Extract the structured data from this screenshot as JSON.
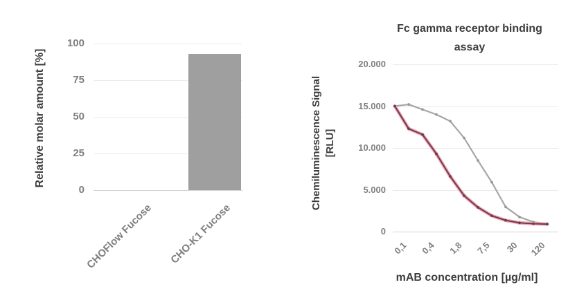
{
  "page": {
    "background": "#ffffff"
  },
  "colors": {
    "bar_gray": "#9f9f9f",
    "line_gray": "#a6a6a6",
    "line_red_core": "#6e3b46",
    "line_red_halo": "#f2a6ba",
    "grid": "#ebebeb",
    "axis_zero_line": "#d2d2d2",
    "tick_text": "#7f7f7f",
    "title_text": "#3d3d3d"
  },
  "chart_data": [
    {
      "id": "fucose-bar-chart",
      "type": "bar",
      "title": "",
      "ylabel": "Relative molar amount [%]",
      "xlabel": "",
      "categories": [
        "CHOFlow Fucose",
        "CHO-K1 Fucose"
      ],
      "values": [
        0,
        93
      ],
      "ylim": [
        0,
        100
      ],
      "yticks": [
        0,
        25,
        50,
        75,
        100
      ],
      "ytick_labels": [
        "0",
        "25",
        "50",
        "75",
        "100"
      ],
      "grid": true,
      "legend": "none",
      "bar_color": "#9f9f9f"
    },
    {
      "id": "fc-gamma-line-chart",
      "type": "line",
      "title": "Fc gamma receptor binding assay",
      "title_line1": "Fc gamma receptor binding",
      "title_line2": "assay",
      "ylabel": "Chemiluminescence Signal [RLU]",
      "ylabel_line1": "Chemiluminescence Signal",
      "ylabel_line2": "[RLU]",
      "xlabel": "mAB concentration [µg/ml]",
      "x_scale": "serial-dilution (log-like, labels at every 2nd point)",
      "x_tick_labels": [
        "0,1",
        "0,4",
        "1,8",
        "7,5",
        "30",
        "120"
      ],
      "points_per_series": 12,
      "ylim": [
        0,
        20000
      ],
      "yticks": [
        0,
        5000,
        10000,
        15000,
        20000
      ],
      "ytick_labels": [
        "0",
        "5.000",
        "10.000",
        "15.000",
        "20.000"
      ],
      "grid": true,
      "legend": "none",
      "series": [
        {
          "name": "gray-curve",
          "color": "#a6a6a6",
          "values": [
            15000,
            15200,
            14600,
            14000,
            13200,
            11200,
            8500,
            5900,
            2950,
            1750,
            1150,
            950
          ]
        },
        {
          "name": "red-curve",
          "color": "#6e3b46",
          "halo_color": "#f2a6ba",
          "values": [
            15000,
            12300,
            11600,
            9300,
            6600,
            4300,
            2900,
            1900,
            1350,
            1050,
            950,
            900
          ]
        }
      ]
    }
  ]
}
